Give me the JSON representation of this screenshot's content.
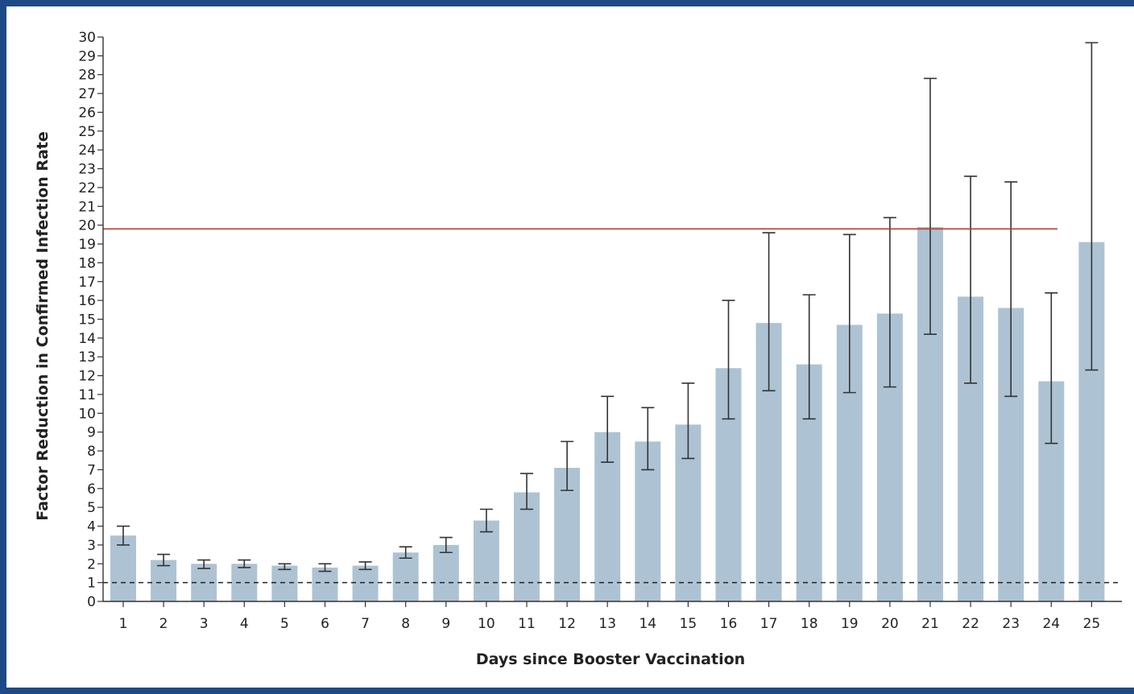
{
  "chart_data": {
    "type": "bar",
    "title": "",
    "xlabel": "Days since Booster Vaccination",
    "ylabel": "Factor Reduction in Confirmed Infection Rate",
    "ylim": [
      0,
      30
    ],
    "yticks": [
      0,
      1,
      2,
      3,
      4,
      5,
      6,
      7,
      8,
      9,
      10,
      11,
      12,
      13,
      14,
      15,
      16,
      17,
      18,
      19,
      20,
      21,
      22,
      23,
      24,
      25,
      26,
      27,
      28,
      29,
      30
    ],
    "categories": [
      "1",
      "2",
      "3",
      "4",
      "5",
      "6",
      "7",
      "8",
      "9",
      "10",
      "11",
      "12",
      "13",
      "14",
      "15",
      "16",
      "17",
      "18",
      "19",
      "20",
      "21",
      "22",
      "23",
      "24",
      "25"
    ],
    "values": [
      3.5,
      2.2,
      2.0,
      2.0,
      1.9,
      1.8,
      1.9,
      2.6,
      3.0,
      4.3,
      5.8,
      7.1,
      9.0,
      8.5,
      9.4,
      12.4,
      14.8,
      12.6,
      14.7,
      15.3,
      19.9,
      16.2,
      15.6,
      11.7,
      19.1
    ],
    "ci_low": [
      3.0,
      1.9,
      1.75,
      1.8,
      1.7,
      1.6,
      1.7,
      2.3,
      2.6,
      3.7,
      4.9,
      5.9,
      7.4,
      7.0,
      7.6,
      9.7,
      11.2,
      9.7,
      11.1,
      11.4,
      14.2,
      11.6,
      10.9,
      8.4,
      12.3
    ],
    "ci_high": [
      4.0,
      2.5,
      2.2,
      2.2,
      2.0,
      2.0,
      2.1,
      2.9,
      3.4,
      4.9,
      6.8,
      8.5,
      10.9,
      10.3,
      11.6,
      16.0,
      19.6,
      16.3,
      19.5,
      20.4,
      27.8,
      22.6,
      22.3,
      16.4,
      29.7
    ],
    "reference_lines": [
      {
        "value": 19.8,
        "style": "solid",
        "color": "#c0392b"
      },
      {
        "value": 1,
        "style": "dashed",
        "color": "#222222"
      }
    ],
    "bar_color": "#adc3d3",
    "grid": false,
    "legend": "none"
  }
}
